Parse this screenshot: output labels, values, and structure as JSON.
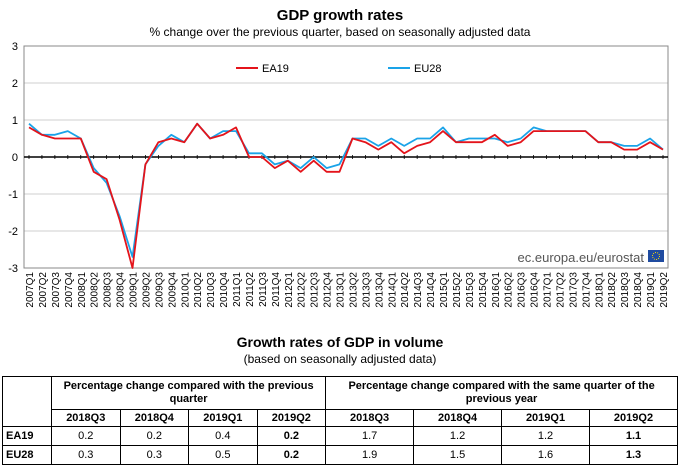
{
  "chart_data": {
    "type": "line",
    "title": "GDP growth rates",
    "subtitle": "% change over the previous quarter, based on seasonally adjusted data",
    "ylim": [
      -3,
      3
    ],
    "yticks": [
      "3",
      "2",
      "1",
      "0",
      "-1",
      "-2",
      "-3"
    ],
    "source": "ec.europa.eu/eurostat",
    "categories": [
      "2007Q1",
      "2007Q2",
      "2007Q3",
      "2007Q4",
      "2008Q1",
      "2008Q2",
      "2008Q3",
      "2008Q4",
      "2009Q1",
      "2009Q2",
      "2009Q3",
      "2009Q4",
      "2010Q1",
      "2010Q2",
      "2010Q3",
      "2010Q4",
      "2011Q1",
      "2011Q2",
      "2011Q3",
      "2011Q4",
      "2012Q1",
      "2012Q2",
      "2012Q3",
      "2012Q4",
      "2013Q1",
      "2013Q2",
      "2013Q3",
      "2013Q4",
      "2014Q1",
      "2014Q2",
      "2014Q3",
      "2014Q4",
      "2015Q1",
      "2015Q2",
      "2015Q3",
      "2015Q4",
      "2016Q1",
      "2016Q2",
      "2016Q3",
      "2016Q4",
      "2017Q1",
      "2017Q2",
      "2017Q3",
      "2017Q4",
      "2018Q1",
      "2018Q2",
      "2018Q3",
      "2018Q4",
      "2019Q1",
      "2019Q2"
    ],
    "series": [
      {
        "name": "EA19",
        "color": "#e4141b",
        "values": [
          0.8,
          0.6,
          0.5,
          0.5,
          0.5,
          -0.4,
          -0.6,
          -1.7,
          -3.0,
          -0.2,
          0.4,
          0.5,
          0.4,
          0.9,
          0.5,
          0.6,
          0.8,
          0.0,
          0.0,
          -0.3,
          -0.1,
          -0.4,
          -0.1,
          -0.4,
          -0.4,
          0.5,
          0.4,
          0.2,
          0.4,
          0.1,
          0.3,
          0.4,
          0.7,
          0.4,
          0.4,
          0.4,
          0.6,
          0.3,
          0.4,
          0.7,
          0.7,
          0.7,
          0.7,
          0.7,
          0.4,
          0.4,
          0.2,
          0.2,
          0.4,
          0.2
        ]
      },
      {
        "name": "EU28",
        "color": "#1aa3e8",
        "values": [
          0.9,
          0.6,
          0.6,
          0.7,
          0.5,
          -0.3,
          -0.7,
          -1.6,
          -2.7,
          -0.2,
          0.3,
          0.6,
          0.4,
          0.9,
          0.5,
          0.7,
          0.7,
          0.1,
          0.1,
          -0.2,
          -0.1,
          -0.3,
          0.0,
          -0.3,
          -0.2,
          0.5,
          0.5,
          0.3,
          0.5,
          0.3,
          0.5,
          0.5,
          0.8,
          0.4,
          0.5,
          0.5,
          0.5,
          0.4,
          0.5,
          0.8,
          0.7,
          0.7,
          0.7,
          0.7,
          0.4,
          0.4,
          0.3,
          0.3,
          0.5,
          0.2
        ]
      }
    ]
  },
  "table": {
    "title": "Growth rates of GDP in volume",
    "subtitle": "(based on seasonally adjusted data)",
    "group1": "Percentage change compared with the previous quarter",
    "group2": "Percentage change compared with the same quarter of the previous year",
    "periods": [
      "2018Q3",
      "2018Q4",
      "2019Q1",
      "2019Q2"
    ],
    "rows": [
      {
        "label": "EA19",
        "qoq": [
          "0.2",
          "0.2",
          "0.4",
          "0.2"
        ],
        "yoy": [
          "1.7",
          "1.2",
          "1.2",
          "1.1"
        ]
      },
      {
        "label": "EU28",
        "qoq": [
          "0.3",
          "0.3",
          "0.5",
          "0.2"
        ],
        "yoy": [
          "1.9",
          "1.5",
          "1.6",
          "1.3"
        ]
      }
    ]
  }
}
